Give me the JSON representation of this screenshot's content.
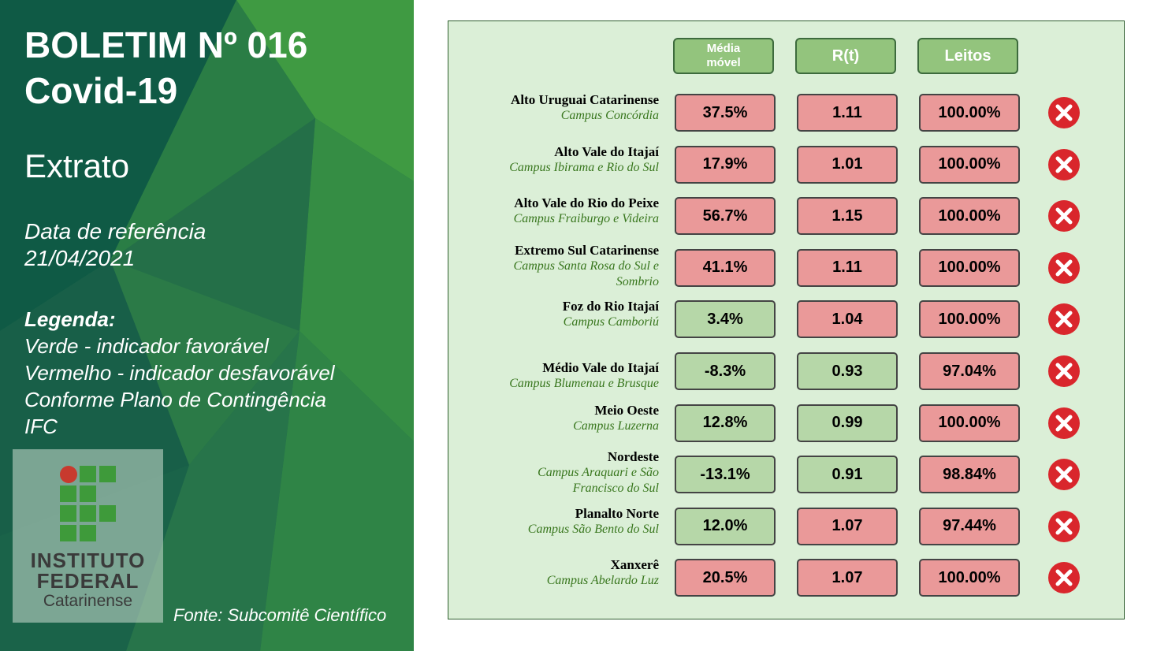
{
  "slide": {
    "title_line1": "BOLETIM Nº 016",
    "title_line2": "Covid-19",
    "subtitle": "Extrato",
    "reference_label": "Data de referência",
    "reference_date": "21/04/2021",
    "legend_title": "Legenda:",
    "legend_lines": [
      "Verde - indicador favorável",
      "Vermelho - indicador desfavorável",
      "Conforme Plano de Contingência",
      "IFC"
    ],
    "source": "Fonte: Subcomitê Científico"
  },
  "logo": {
    "line1": "INSTITUTO",
    "line2": "FEDERAL",
    "line3": "Catarinense"
  },
  "table": {
    "headers": {
      "media_line1": "Média",
      "media_line2": "móvel",
      "rt": "R(t)",
      "leitos": "Leitos"
    },
    "rows": [
      {
        "name": "Alto Uruguai Catarinense",
        "campus": "Campus Concórdia",
        "media": "37.5%",
        "rt": "1.11",
        "leitos": "100.00%"
      },
      {
        "name": "Alto Vale do Itajaí",
        "campus": "Campus Ibirama e Rio do Sul",
        "media": "17.9%",
        "rt": "1.01",
        "leitos": "100.00%"
      },
      {
        "name": "Alto Vale do Rio do Peixe",
        "campus": "Campus Fraiburgo e Videira",
        "media": "56.7%",
        "rt": "1.15",
        "leitos": "100.00%"
      },
      {
        "name": "Extremo Sul Catarinense",
        "campus": "Campus Santa Rosa do Sul e",
        "campus2": "Sombrio",
        "media": "41.1%",
        "rt": "1.11",
        "leitos": "100.00%"
      },
      {
        "name": "Foz do Rio Itajaí",
        "campus": "Campus Camboriú",
        "media": "3.4%",
        "rt": "1.04",
        "leitos": "100.00%"
      },
      {
        "name": "Médio Vale do Itajaí",
        "campus": "Campus Blumenau e Brusque",
        "media": "-8.3%",
        "rt": "0.93",
        "leitos": "97.04%"
      },
      {
        "name": "Meio Oeste",
        "campus": "Campus Luzerna",
        "media": "12.8%",
        "rt": "0.99",
        "leitos": "100.00%"
      },
      {
        "name": "Nordeste",
        "campus": "Campus Araquari e São",
        "campus2": "Francisco do Sul",
        "media": "-13.1%",
        "rt": "0.91",
        "leitos": "98.84%"
      },
      {
        "name": "Planalto Norte",
        "campus": "Campus São Bento do Sul",
        "media": "12.0%",
        "rt": "1.07",
        "leitos": "97.44%"
      },
      {
        "name": "Xanxerê",
        "campus": "Campus Abelardo Luz",
        "media": "20.5%",
        "rt": "1.07",
        "leitos": "100.00%"
      }
    ]
  },
  "colors": {
    "unfavorable": "#ea9999",
    "favorable": "#b6d7a8",
    "status_icon": "#d9262c",
    "header_fill": "#93c47d",
    "panel_green": "#1f6b4b"
  },
  "icons": {
    "status": "x-circle-icon"
  }
}
